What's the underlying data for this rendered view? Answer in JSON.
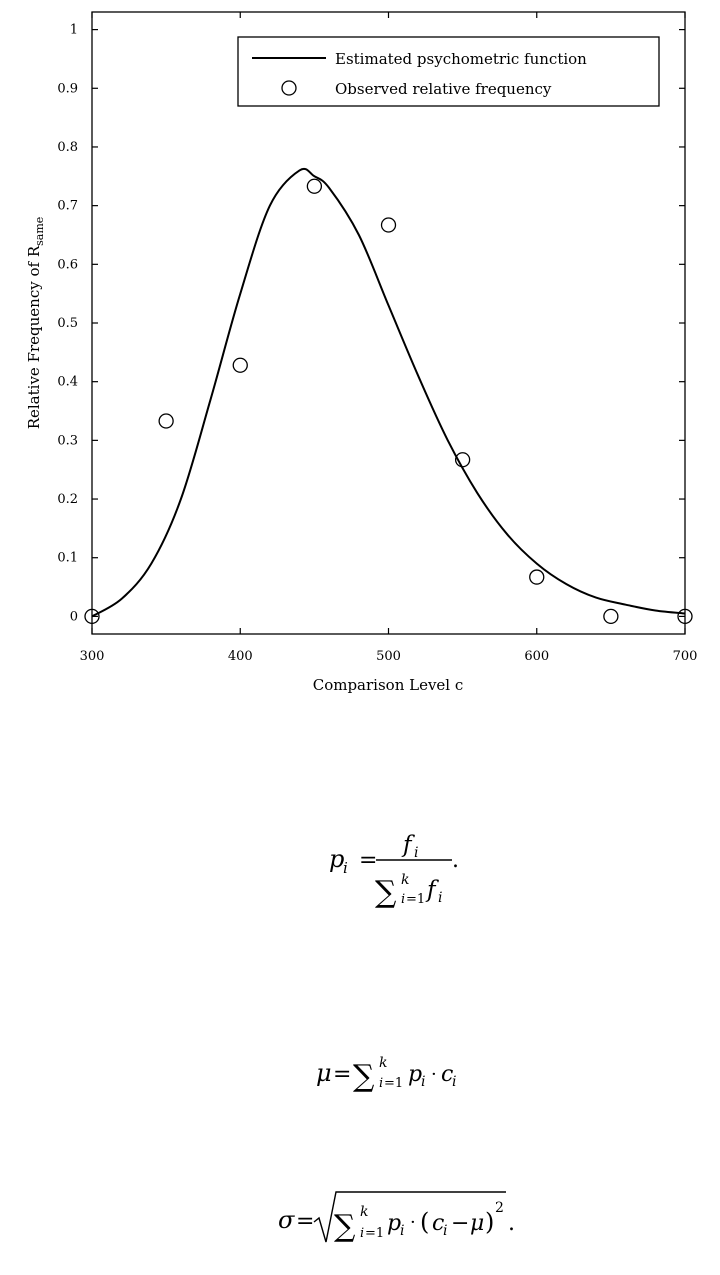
{
  "chart_data": {
    "type": "line",
    "xlabel": "Comparison Level c",
    "ylabel": "Relative Frequency of R",
    "ylabel_subscript": "same",
    "xlim": [
      300,
      700
    ],
    "ylim": [
      -0.03,
      1.03
    ],
    "x_ticks": [
      300,
      400,
      500,
      600,
      700
    ],
    "x_tick_labels": [
      "300",
      "400",
      "500",
      "600",
      "700"
    ],
    "y_ticks": [
      0,
      0.1,
      0.2,
      0.3,
      0.4,
      0.5,
      0.6,
      0.7,
      0.8,
      0.9,
      1
    ],
    "y_tick_labels": [
      "0",
      "0.1",
      "0.2",
      "0.3",
      "0.4",
      "0.5",
      "0.6",
      "0.7",
      "0.8",
      "0.9",
      "1"
    ],
    "grid": false,
    "legend_position": "top-right",
    "series": [
      {
        "name": "Estimated psychometric function",
        "kind": "line",
        "x": [
          300,
          320,
          340,
          360,
          380,
          400,
          420,
          440,
          450,
          460,
          480,
          500,
          520,
          540,
          560,
          580,
          600,
          620,
          640,
          660,
          680,
          700
        ],
        "y": [
          0.0,
          0.03,
          0.09,
          0.2,
          0.37,
          0.55,
          0.7,
          0.76,
          0.75,
          0.73,
          0.65,
          0.53,
          0.41,
          0.3,
          0.21,
          0.14,
          0.09,
          0.055,
          0.032,
          0.02,
          0.01,
          0.005
        ]
      },
      {
        "name": "Observed relative frequency",
        "kind": "scatter",
        "x": [
          300,
          350,
          400,
          450,
          500,
          550,
          600,
          650,
          700
        ],
        "y": [
          0.0,
          0.333,
          0.428,
          0.733,
          0.667,
          0.267,
          0.067,
          0.0,
          0.0
        ]
      }
    ]
  }
}
